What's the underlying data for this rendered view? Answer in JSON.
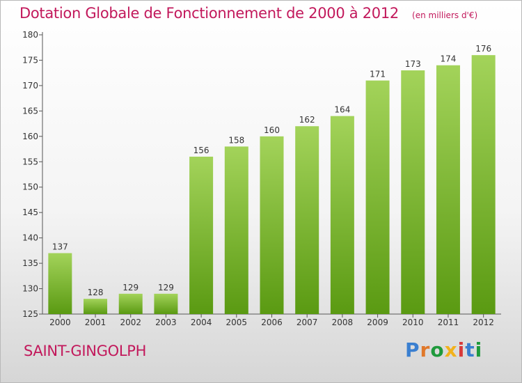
{
  "header": {
    "title": "Dotation Globale de Fonctionnement de 2000 à 2012",
    "subtitle": "(en milliers d'€)"
  },
  "footer": {
    "commune": "SAINT-GINGOLPH",
    "brand": "Proxiti",
    "brand_colors": [
      "#3a7fd0",
      "#e0782a",
      "#1f9a3c",
      "#f2b21c",
      "#d83a3a",
      "#3a7fd0",
      "#1f9a3c"
    ]
  },
  "chart_data": {
    "type": "bar",
    "categories": [
      "2000",
      "2001",
      "2002",
      "2003",
      "2004",
      "2005",
      "2006",
      "2007",
      "2008",
      "2009",
      "2010",
      "2011",
      "2012"
    ],
    "values": [
      137,
      128,
      129,
      129,
      156,
      158,
      160,
      162,
      164,
      171,
      173,
      174,
      176
    ],
    "title": "Dotation Globale de Fonctionnement de 2000 à 2012",
    "subtitle": "(en milliers d'€)",
    "ylim": [
      125,
      180
    ],
    "yticks": [
      125,
      130,
      135,
      140,
      145,
      150,
      155,
      160,
      165,
      170,
      175,
      180
    ],
    "grid": false,
    "bar_color_top": "#a3d35a",
    "bar_color_bottom": "#5a9a12"
  }
}
